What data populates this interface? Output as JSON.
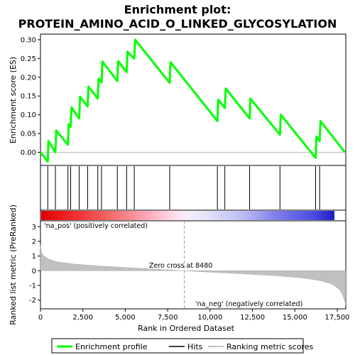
{
  "chart_data": {
    "type": "line",
    "title_line1": "Enrichment plot:",
    "title_line2": "PROTEIN_AMINO_ACID_O_LINKED_GLYCOSYLATION",
    "es_panel": {
      "ylabel": "Enrichment score (ES)",
      "ylim": [
        -0.035,
        0.315
      ],
      "yticks": [
        "0.00",
        "0.05",
        "0.10",
        "0.15",
        "0.20",
        "0.25",
        "0.30"
      ],
      "ytick_values": [
        0.0,
        0.05,
        0.1,
        0.15,
        0.2,
        0.25,
        0.3
      ],
      "series_name": "Enrichment profile",
      "color": "#00ff00",
      "points": [
        [
          0,
          0.0
        ],
        [
          430,
          -0.025
        ],
        [
          470,
          0.03
        ],
        [
          880,
          0.0
        ],
        [
          930,
          0.058
        ],
        [
          1620,
          0.02
        ],
        [
          1660,
          0.075
        ],
        [
          1780,
          0.068
        ],
        [
          1830,
          0.12
        ],
        [
          2280,
          0.09
        ],
        [
          2330,
          0.148
        ],
        [
          2780,
          0.122
        ],
        [
          2830,
          0.175
        ],
        [
          3380,
          0.143
        ],
        [
          3430,
          0.196
        ],
        [
          3600,
          0.186
        ],
        [
          3650,
          0.242
        ],
        [
          4530,
          0.19
        ],
        [
          4580,
          0.243
        ],
        [
          5080,
          0.214
        ],
        [
          5130,
          0.268
        ],
        [
          5530,
          0.25
        ],
        [
          5580,
          0.3
        ],
        [
          7620,
          0.185
        ],
        [
          7670,
          0.24
        ],
        [
          10430,
          0.083
        ],
        [
          10480,
          0.14
        ],
        [
          10870,
          0.118
        ],
        [
          10920,
          0.17
        ],
        [
          12330,
          0.09
        ],
        [
          12380,
          0.143
        ],
        [
          14120,
          0.047
        ],
        [
          14170,
          0.1
        ],
        [
          16220,
          -0.015
        ],
        [
          16270,
          0.042
        ],
        [
          16460,
          0.03
        ],
        [
          16510,
          0.083
        ],
        [
          17950,
          0.0
        ]
      ]
    },
    "hits": [
      430,
      880,
      1620,
      1780,
      2280,
      2780,
      3380,
      3600,
      4530,
      5080,
      5530,
      7620,
      10430,
      10870,
      12330,
      14120,
      16220,
      16460
    ],
    "rank_panel": {
      "ylabel": "Ranked list metric (PreRanked)",
      "ylim": [
        -2.6,
        3.4
      ],
      "yticks": [
        "3",
        "2",
        "1",
        "0",
        "-1",
        "-2"
      ],
      "ytick_values": [
        3,
        2,
        1,
        0,
        -1,
        -2
      ],
      "pos_label": "'na_pos' (positively correlated)",
      "neg_label": "'na_neg' (negatively correlated)",
      "zero_cross_label": "Zero cross at 8480",
      "zero_cross": 8480,
      "metric_profile": [
        [
          0,
          1.75
        ],
        [
          60,
          1.25
        ],
        [
          200,
          1.0
        ],
        [
          500,
          0.78
        ],
        [
          1000,
          0.6
        ],
        [
          2000,
          0.45
        ],
        [
          3500,
          0.32
        ],
        [
          5000,
          0.22
        ],
        [
          6500,
          0.12
        ],
        [
          8480,
          0.0
        ],
        [
          10000,
          -0.1
        ],
        [
          12000,
          -0.22
        ],
        [
          14000,
          -0.35
        ],
        [
          15500,
          -0.5
        ],
        [
          16500,
          -0.68
        ],
        [
          17200,
          -0.92
        ],
        [
          17600,
          -1.25
        ],
        [
          17800,
          -1.6
        ],
        [
          17920,
          -2.0
        ],
        [
          17990,
          -2.35
        ]
      ]
    },
    "xlabel": "Rank in Ordered Dataset",
    "xlim": [
      0,
      18000
    ],
    "xticks": [
      "0",
      "2,500",
      "5,000",
      "7,500",
      "10,000",
      "12,500",
      "15,000",
      "17,500"
    ],
    "xtick_values": [
      0,
      2500,
      5000,
      7500,
      10000,
      12500,
      15000,
      17500
    ],
    "legend": {
      "placement": "bottom",
      "items": [
        "Enrichment profile",
        "Hits",
        "Ranking metric scores"
      ]
    },
    "colors": {
      "profile": "#00ff00",
      "hits": "#000000",
      "metric": "#c0c0c0",
      "pos_text": "#cc0000",
      "neg_text": "#0000cc"
    }
  }
}
